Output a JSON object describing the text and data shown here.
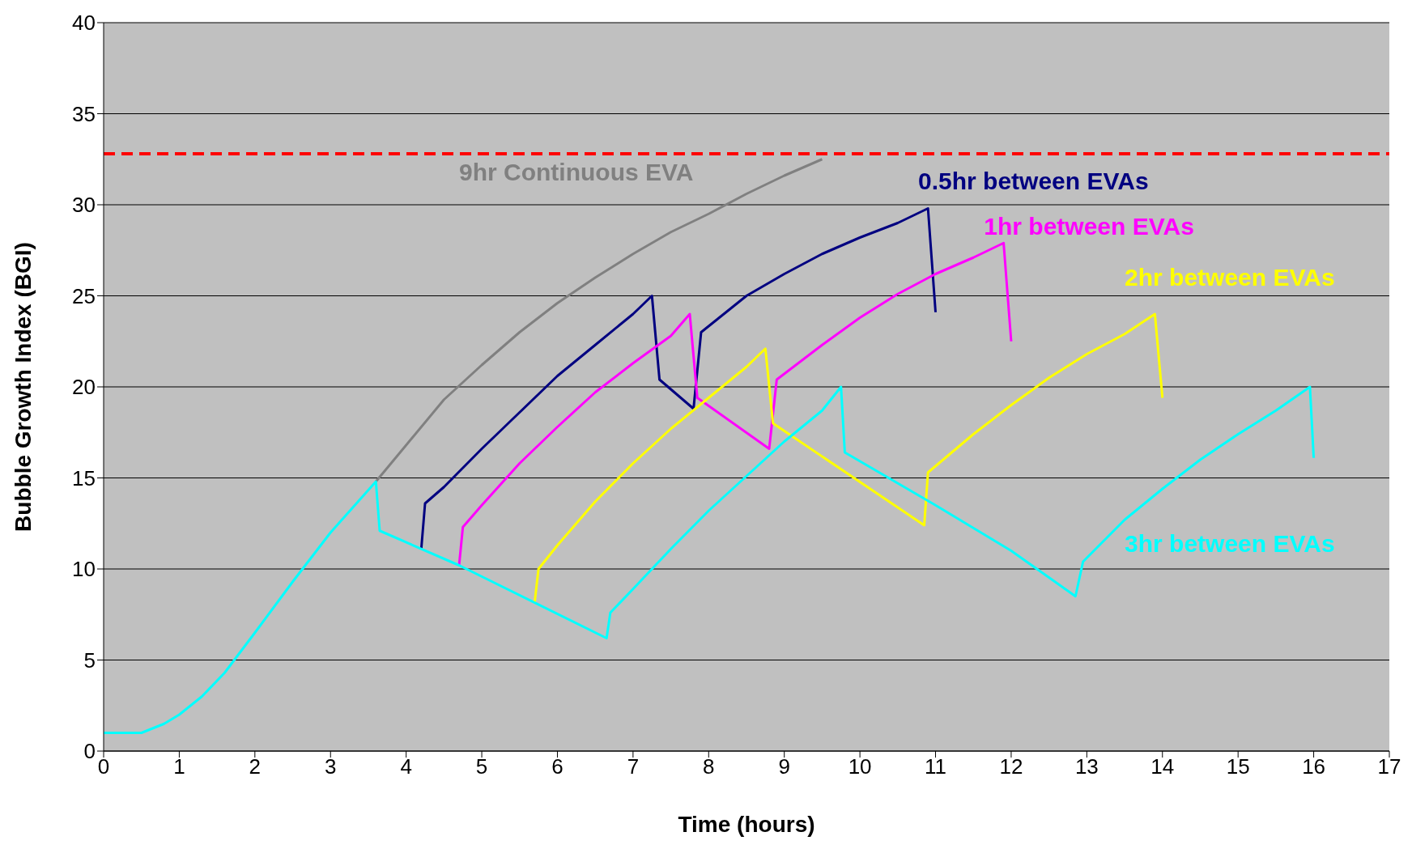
{
  "chart_data": {
    "type": "line",
    "xlabel": "Time (hours)",
    "ylabel": "Bubble Growth Index (BGI)",
    "xlim": [
      0,
      17
    ],
    "xticks": [
      0,
      1,
      2,
      3,
      4,
      5,
      6,
      7,
      8,
      9,
      10,
      11,
      12,
      13,
      14,
      15,
      16,
      17
    ],
    "ylim": [
      0,
      40
    ],
    "yticks": [
      0,
      5,
      10,
      15,
      20,
      25,
      30,
      35,
      40
    ],
    "grid": "y",
    "marker": "none",
    "line_style": "solid",
    "ref_lines": [
      {
        "axis": "y",
        "value": 32.8,
        "color": "#ff0000",
        "line_style": "dashed"
      }
    ],
    "series": [
      {
        "name": "9hr Continuous EVA",
        "color": "#808080",
        "x": [
          3.6,
          4,
          4.5,
          5,
          5.5,
          6,
          6.5,
          7,
          7.5,
          8,
          8.5,
          9,
          9.5
        ],
        "values": [
          14.8,
          16.8,
          19.3,
          21.2,
          23,
          24.6,
          26,
          27.3,
          28.5,
          29.5,
          30.6,
          31.6,
          32.5
        ]
      },
      {
        "name": "0.5hr between EVAs",
        "color": "#000080",
        "x": [
          4.2,
          4.25,
          4.5,
          5,
          5.5,
          6,
          6.5,
          7,
          7.25,
          7.35,
          7.8,
          7.9,
          8.5,
          9,
          9.5,
          10,
          10.5,
          10.9,
          11
        ],
        "values": [
          11.1,
          13.6,
          14.5,
          16.6,
          18.6,
          20.6,
          22.3,
          24,
          25,
          20.4,
          18.8,
          23,
          25,
          26.2,
          27.3,
          28.2,
          29,
          29.8,
          24.1
        ]
      },
      {
        "name": "1hr between EVAs",
        "color": "#ff00ff",
        "x": [
          4.7,
          4.75,
          5,
          5.5,
          6,
          6.5,
          7,
          7.5,
          7.75,
          7.85,
          8.8,
          8.9,
          9.5,
          10,
          10.5,
          11,
          11.5,
          11.9,
          12
        ],
        "values": [
          10.2,
          12.3,
          13.5,
          15.8,
          17.8,
          19.7,
          21.3,
          22.8,
          24,
          19.4,
          16.6,
          20.4,
          22.3,
          23.8,
          25.1,
          26.2,
          27.1,
          27.9,
          22.5
        ]
      },
      {
        "name": "2hr between EVAs",
        "color": "#ffff00",
        "x": [
          5.7,
          5.75,
          6,
          6.5,
          7,
          7.5,
          8,
          8.5,
          8.75,
          8.85,
          10.85,
          10.9,
          11.5,
          12,
          12.5,
          13,
          13.5,
          13.9,
          14
        ],
        "values": [
          8.2,
          10,
          11.3,
          13.7,
          15.8,
          17.7,
          19.4,
          21.1,
          22.1,
          18,
          12.4,
          15.3,
          17.4,
          19,
          20.5,
          21.8,
          22.9,
          24,
          19.4
        ]
      },
      {
        "name": "3hr between EVAs",
        "color": "#00ffff",
        "x": [
          0,
          0.5,
          0.8,
          1,
          1.3,
          1.6,
          2,
          2.5,
          3,
          3.6,
          3.65,
          4.7,
          6.65,
          6.7,
          7,
          7.5,
          8,
          8.5,
          9,
          9.5,
          9.75,
          9.8,
          11,
          12,
          12.85,
          12.95,
          13.5,
          14,
          14.5,
          15,
          15.5,
          15.95,
          16
        ],
        "values": [
          1,
          1,
          1.5,
          2,
          3,
          4.3,
          6.5,
          9.3,
          12,
          14.8,
          12.1,
          10.2,
          6.2,
          7.6,
          8.9,
          11.1,
          13.2,
          15.1,
          17,
          18.7,
          20,
          16.4,
          13.5,
          11,
          8.5,
          10.4,
          12.7,
          14.4,
          16,
          17.4,
          18.7,
          20,
          16.1
        ]
      }
    ]
  }
}
